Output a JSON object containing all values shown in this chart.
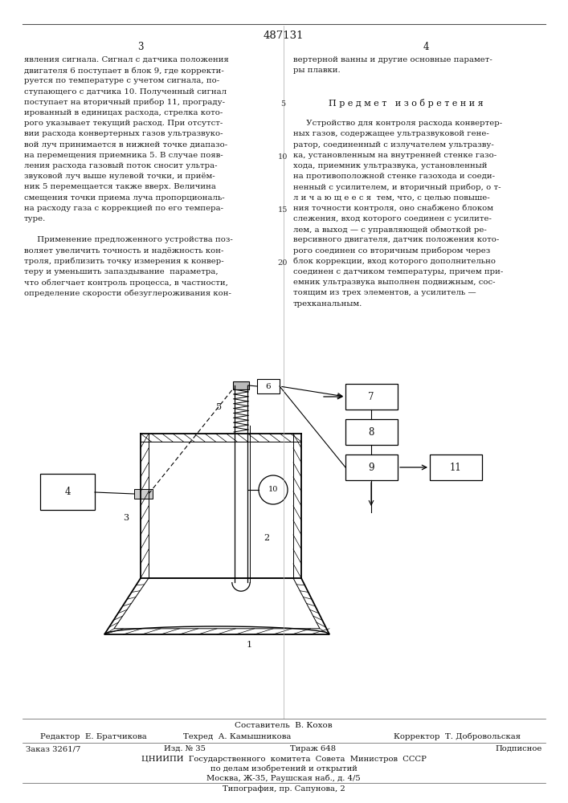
{
  "patent_number": "487131",
  "page_left": "3",
  "page_right": "4",
  "text_left_col": [
    "явления сигнала. Сигнал с датчика положения",
    "двигателя 6 поступает в блок 9, где корректи-",
    "руется по температуре с учетом сигнала, по-",
    "ступающего с датчика 10. Полученный сигнал",
    "поступает на вторичный прибор 11, програду-",
    "ированный в единицах расхода, стрелка кото-",
    "рого указывает текущий расход. При отсутст-",
    "вии расхода конвертерных газов ультразвуко-",
    "вой луч принимается в нижней точке диапазо-",
    "на перемещения приемника 5. В случае появ-",
    "ления расхода газовый поток сносит ультра-",
    "звуковой луч выше нулевой точки, и приём-",
    "ник 5 перемещается также вверх. Величина",
    "смещения точки приема луча пропорциональ-",
    "на расходу газа с коррекцией по его темпера-",
    "туре.",
    "",
    "     Применение предложенного устройства поз-",
    "воляет увеличить точность и надёжность кон-",
    "троля, приблизить точку измерения к конвер-",
    "теру и уменьшить запаздывание  параметра,",
    "что облегчает контроль процесса, в частности,",
    "определение скорости обезуглероживания кон-"
  ],
  "text_right_col": [
    "вертерной ванны и другие основные парамет-",
    "ры плавки.",
    "",
    "",
    "П р е д м е т   и з о б р е т е н и я",
    "",
    "     Устройство для контроля расхода конвертер-",
    "ных газов, содержащее ультразвуковой гене-",
    "ратор, соединенный с излучателем ультразву-",
    "ка, установленным на внутренней стенке газо-",
    "хода, приемник ультразвука, установленный",
    "на противоположной стенке газохода и соеди-",
    "ненный с усилителем, и вторичный прибор, о т-",
    "л и ч а ю щ е е с я  тем, что, с целью повыше-",
    "ния точности контроля, оно снабжено блоком",
    "слежения, вход которого соединен с усилите-",
    "лем, а выход — с управляющей обмоткой ре-",
    "версивного двигателя, датчик положения кото-",
    "рого соединен со вторичным прибором через",
    "блок коррекции, вход которого дополнительно",
    "соединен с датчиком температуры, причем при-",
    "емник ультразвука выполнен подвижным, сос-",
    "тоящим из трех элементов, а усилитель —",
    "трехканальным."
  ],
  "line_numbers_left": [
    "5",
    "10",
    "15",
    "20"
  ],
  "line_numbers_right": [],
  "composer": "Составитель  В. Кохов",
  "editor_label": "Редактор",
  "editor_name": "Е. Братчикова",
  "tech_label": "Техред",
  "tech_name": "А. Камышникова",
  "corrector_label": "Корректор",
  "corrector_name": "Т. Добровольская",
  "order": "Заказ 3261/7",
  "izd": "Изд. № 35",
  "tirazh": "Тираж 648",
  "podpisnoe": "Подписное",
  "cniipи_line1": "ЦНИИПИ  Государственного  комитета  Совета  Министров  СССР",
  "po_delam": "по делам изобретений и открытий",
  "moskva": "Москва, Ж-35, Раушская наб., д. 4/5",
  "tipografiya": "Типография, пр. Сапунова, 2",
  "bg_color": "#ffffff",
  "text_color": "#1a1a1a",
  "line_color": "#333333"
}
